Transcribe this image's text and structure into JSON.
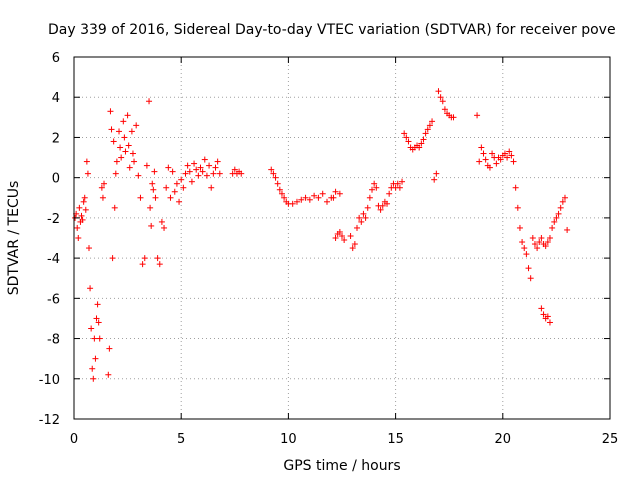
{
  "chart_data": {
    "type": "scatter",
    "title": "Day 339 of 2016, Sidereal Day-to-day VTEC variation (SDTVAR) for receiver pove",
    "xlabel": "GPS time / hours",
    "ylabel": "SDTVAR / TECUs",
    "xlim": [
      0,
      25
    ],
    "ylim": [
      -12,
      6
    ],
    "xticks": [
      0,
      5,
      10,
      15,
      20,
      25
    ],
    "yticks": [
      -12,
      -10,
      -8,
      -6,
      -4,
      -2,
      0,
      2,
      4,
      6
    ],
    "grid": true,
    "marker": "+",
    "marker_color": "#ff0000",
    "series": [
      {
        "name": "SDTVAR",
        "x": [
          0.05,
          0.1,
          0.15,
          0.2,
          0.25,
          0.3,
          0.35,
          0.4,
          0.45,
          0.5,
          0.55,
          0.6,
          0.65,
          0.7,
          0.75,
          0.8,
          0.85,
          0.9,
          0.95,
          1.0,
          1.05,
          1.1,
          1.15,
          1.2,
          1.3,
          1.35,
          1.4,
          1.6,
          1.65,
          1.7,
          1.75,
          1.8,
          1.85,
          1.9,
          1.95,
          2.0,
          2.1,
          2.15,
          2.2,
          2.3,
          2.35,
          2.4,
          2.5,
          2.55,
          2.6,
          2.7,
          2.75,
          2.8,
          2.9,
          3.0,
          3.1,
          3.2,
          3.3,
          3.4,
          3.5,
          3.55,
          3.6,
          3.65,
          3.7,
          3.75,
          3.8,
          3.9,
          4.0,
          4.1,
          4.2,
          4.3,
          4.4,
          4.5,
          4.6,
          4.7,
          4.8,
          4.9,
          5.0,
          5.1,
          5.2,
          5.3,
          5.4,
          5.5,
          5.6,
          5.7,
          5.8,
          5.9,
          6.0,
          6.1,
          6.2,
          6.3,
          6.4,
          6.5,
          6.6,
          6.7,
          6.8,
          7.4,
          7.5,
          7.6,
          7.7,
          7.8,
          9.2,
          9.3,
          9.4,
          9.5,
          9.6,
          9.7,
          9.8,
          9.9,
          10.0,
          10.2,
          10.4,
          10.6,
          10.8,
          11.0,
          11.2,
          11.4,
          11.6,
          11.8,
          12.0,
          12.2,
          12.4,
          12.1,
          12.2,
          12.3,
          12.4,
          12.5,
          12.6,
          12.9,
          13.0,
          13.1,
          13.2,
          13.3,
          13.4,
          13.5,
          13.6,
          13.7,
          13.8,
          13.9,
          14.0,
          14.1,
          14.2,
          14.3,
          14.4,
          14.5,
          14.6,
          14.7,
          14.8,
          14.9,
          15.0,
          15.1,
          15.2,
          15.3,
          15.4,
          15.5,
          15.6,
          15.7,
          15.8,
          15.9,
          16.0,
          16.1,
          16.2,
          16.3,
          16.4,
          16.5,
          16.6,
          16.7,
          16.8,
          16.9,
          17.0,
          17.1,
          17.2,
          17.3,
          17.4,
          17.5,
          17.6,
          17.7,
          18.8,
          18.9,
          19.0,
          19.1,
          19.2,
          19.3,
          19.4,
          19.5,
          19.6,
          19.7,
          19.8,
          19.9,
          20.0,
          20.1,
          20.2,
          20.3,
          20.4,
          20.5,
          20.6,
          20.7,
          20.8,
          20.9,
          21.0,
          21.1,
          21.2,
          21.3,
          21.4,
          21.5,
          21.6,
          21.7,
          21.8,
          21.9,
          22.0,
          22.1,
          22.2,
          22.3,
          22.4,
          22.5,
          22.6,
          22.7,
          22.8,
          22.9,
          23.0,
          21.8,
          21.9,
          22.0,
          22.1,
          22.2
        ],
        "y": [
          -2.0,
          -1.8,
          -2.5,
          -3.0,
          -1.5,
          -2.2,
          -1.9,
          -2.1,
          -1.2,
          -1.0,
          -1.6,
          0.8,
          0.2,
          -3.5,
          -5.5,
          -7.5,
          -9.5,
          -10.0,
          -8.0,
          -9.0,
          -7.0,
          -6.3,
          -7.2,
          -8.0,
          -0.5,
          -1.0,
          -0.3,
          -9.8,
          -8.5,
          3.3,
          2.4,
          -4.0,
          1.8,
          -1.5,
          0.2,
          0.8,
          2.3,
          1.5,
          1.0,
          2.8,
          2.0,
          1.3,
          3.1,
          1.6,
          0.5,
          2.3,
          1.2,
          0.8,
          2.6,
          0.1,
          -1.0,
          -4.3,
          -4.0,
          0.6,
          3.8,
          -1.5,
          -2.4,
          -0.3,
          -0.6,
          0.3,
          -1.0,
          -4.0,
          -4.3,
          -2.2,
          -2.5,
          -0.5,
          0.5,
          -1.0,
          0.3,
          -0.7,
          -0.3,
          -1.2,
          -0.1,
          -0.5,
          0.2,
          0.6,
          0.3,
          -0.2,
          0.7,
          0.4,
          0.1,
          0.5,
          0.3,
          0.9,
          0.1,
          0.6,
          -0.5,
          0.2,
          0.5,
          0.8,
          0.2,
          0.2,
          0.4,
          0.2,
          0.3,
          0.2,
          0.4,
          0.2,
          0.0,
          -0.3,
          -0.6,
          -0.8,
          -1.0,
          -1.2,
          -1.3,
          -1.3,
          -1.2,
          -1.1,
          -1.0,
          -1.1,
          -0.9,
          -1.0,
          -0.8,
          -1.2,
          -1.0,
          -0.7,
          -0.8,
          -1.0,
          -3.0,
          -2.8,
          -2.7,
          -2.9,
          -3.1,
          -2.9,
          -3.5,
          -3.3,
          -2.5,
          -2.0,
          -2.2,
          -1.8,
          -2.0,
          -1.5,
          -1.0,
          -0.6,
          -0.3,
          -0.5,
          -1.4,
          -1.6,
          -1.4,
          -1.2,
          -1.3,
          -0.8,
          -0.5,
          -0.3,
          -0.5,
          -0.3,
          -0.5,
          -0.2,
          2.2,
          2.0,
          1.8,
          1.5,
          1.4,
          1.5,
          1.6,
          1.5,
          1.7,
          1.9,
          2.2,
          2.4,
          2.6,
          2.8,
          -0.1,
          0.2,
          4.3,
          4.0,
          3.8,
          3.4,
          3.2,
          3.1,
          3.0,
          3.0,
          3.1,
          0.8,
          1.5,
          1.2,
          0.9,
          0.6,
          0.5,
          1.2,
          1.0,
          0.7,
          1.0,
          0.9,
          1.1,
          1.2,
          1.0,
          1.3,
          1.1,
          0.8,
          -0.5,
          -1.5,
          -2.5,
          -3.2,
          -3.5,
          -3.8,
          -4.5,
          -5.0,
          -3.0,
          -3.3,
          -3.5,
          -3.2,
          -3.0,
          -3.3,
          -3.4,
          -3.2,
          -3.0,
          -2.5,
          -2.2,
          -2.0,
          -1.8,
          -1.5,
          -1.2,
          -1.0,
          -2.6,
          -6.5,
          -6.8,
          -7.0,
          -6.9,
          -7.2
        ]
      }
    ]
  }
}
